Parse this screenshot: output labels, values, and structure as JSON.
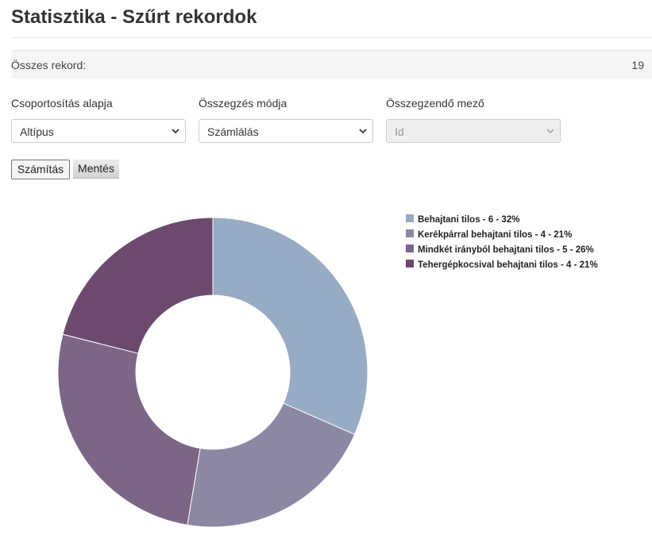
{
  "header": {
    "title": "Statisztika - Szűrt rekordok"
  },
  "summary": {
    "label": "Összes rekord:",
    "value": "19"
  },
  "filters": [
    {
      "label": "Csoportosítás alapja",
      "value": "Altípus",
      "disabled": false
    },
    {
      "label": "Összegzés módja",
      "value": "Számlálás",
      "disabled": false
    },
    {
      "label": "Összegzendő mező",
      "value": "Id",
      "disabled": true
    }
  ],
  "buttons": {
    "calculate": "Számítás",
    "save": "Mentés"
  },
  "icons": {
    "select_arrow": "chevron-down-icon",
    "legend_marker": "square-icon"
  },
  "chart_data": {
    "type": "pie",
    "variant": "donut",
    "legend_position": "right",
    "slices": [
      {
        "label": "Behajtani tilos - 6 - 32%",
        "value": 6,
        "percent": 32,
        "color": "#97abc5"
      },
      {
        "label": "Kerékpárral behajtani tilos - 4 - 21%",
        "value": 4,
        "percent": 21,
        "color": "#8a88a3"
      },
      {
        "label": "Mindkét irányból behajtani tilos - 5 - 26%",
        "value": 5,
        "percent": 26,
        "color": "#7b6686"
      },
      {
        "label": "Tehergépkocsival behajtani tilos - 4 - 21%",
        "value": 4,
        "percent": 21,
        "color": "#6c4a6e"
      }
    ]
  }
}
